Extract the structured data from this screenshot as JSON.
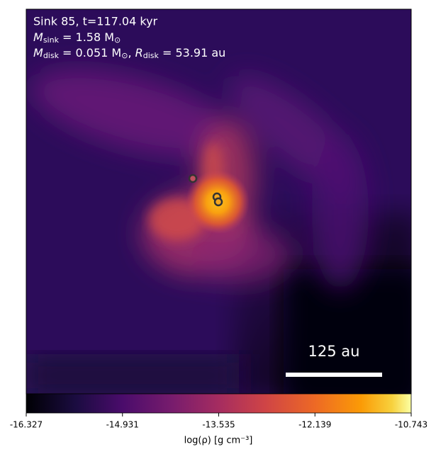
{
  "chart_data": {
    "type": "heatmap",
    "title": "Sink 85, t=117.04 kyr",
    "annotations": [
      {
        "symbol": "M",
        "sub": "sink",
        "rest": " = 1.58 M",
        "sub2": "⊙"
      },
      {
        "symbol": "M",
        "sub": "disk",
        "rest": " = 0.051 M",
        "sub2": "⊙",
        "sep": ", ",
        "symbol2": "R",
        "sub3": "disk",
        "rest2": " = 53.91 au"
      }
    ],
    "scale_bar_label": "125 au",
    "colorbar": {
      "label": "log(ρ) [g cm⁻³]",
      "clim": [
        -16.327,
        -10.743
      ],
      "ticks": [
        -16.327,
        -14.931,
        -13.535,
        -12.139,
        -10.743
      ],
      "colormap": "inferno"
    }
  }
}
